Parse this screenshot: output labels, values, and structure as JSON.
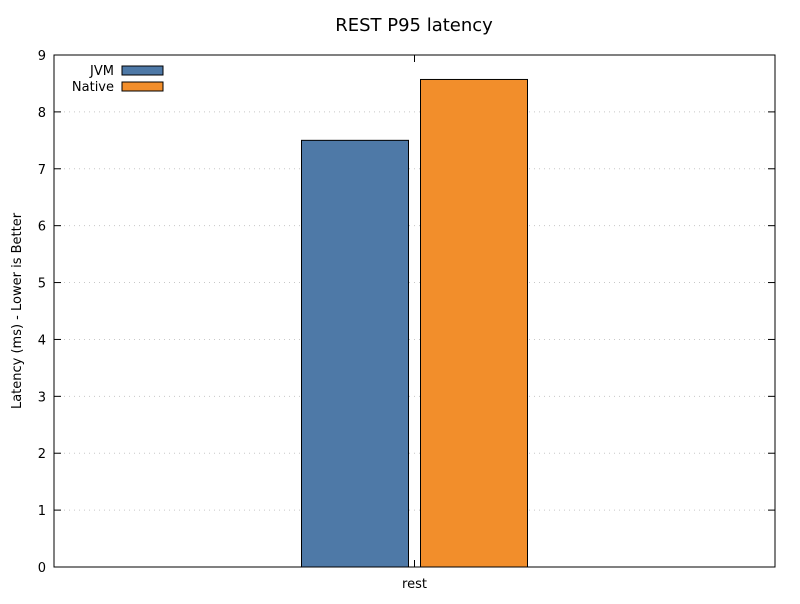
{
  "chart_data": {
    "type": "bar",
    "title": "REST P95 latency",
    "xlabel": "",
    "ylabel": "Latency (ms) - Lower is Better",
    "categories": [
      "rest"
    ],
    "series": [
      {
        "name": "JVM",
        "values": [
          7.5
        ]
      },
      {
        "name": "Native",
        "values": [
          8.57
        ]
      }
    ],
    "ylim": [
      0,
      9
    ],
    "yticks": [
      0,
      1,
      2,
      3,
      4,
      5,
      6,
      7,
      8,
      9
    ],
    "grid": true,
    "legend_position": "top-left"
  },
  "colors": {
    "JVM": "#4e79a7",
    "Native": "#f28e2b",
    "bar_outline": "#000000",
    "grid": "#c8c8c8",
    "frame": "#000000"
  }
}
